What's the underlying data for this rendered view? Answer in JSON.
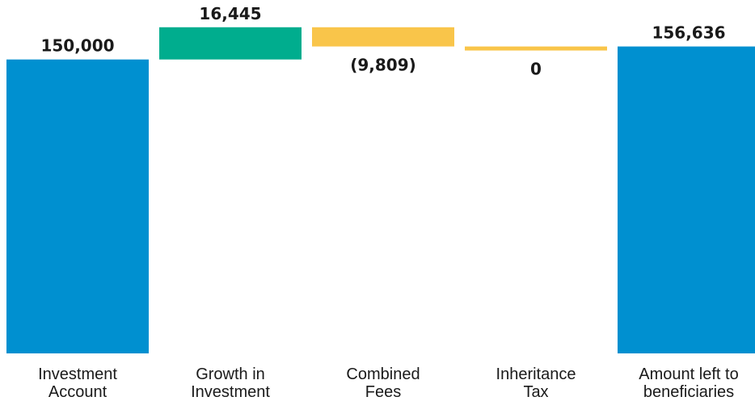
{
  "chart_data": {
    "type": "bar",
    "subtype": "waterfall",
    "title": "",
    "xlabel": "",
    "ylabel": "",
    "ylim": [
      0,
      175000
    ],
    "grid": false,
    "legend": "none",
    "categories": [
      [
        "Investment",
        "Account"
      ],
      [
        "Growth in",
        "Investment"
      ],
      [
        "Combined",
        "Fees"
      ],
      [
        "Inheritance",
        "Tax"
      ],
      [
        "Amount left to",
        "beneficiaries"
      ]
    ],
    "values": [
      150000,
      16445,
      -9809,
      0,
      156636
    ],
    "bar_kind": [
      "total",
      "delta",
      "delta",
      "delta",
      "total"
    ],
    "value_labels": [
      "150,000",
      "16,445",
      "(9,809)",
      "0",
      "156,636"
    ],
    "colors": {
      "total": "#0090d0",
      "increase": "#00ad8e",
      "decrease": "#f9c54a"
    }
  }
}
